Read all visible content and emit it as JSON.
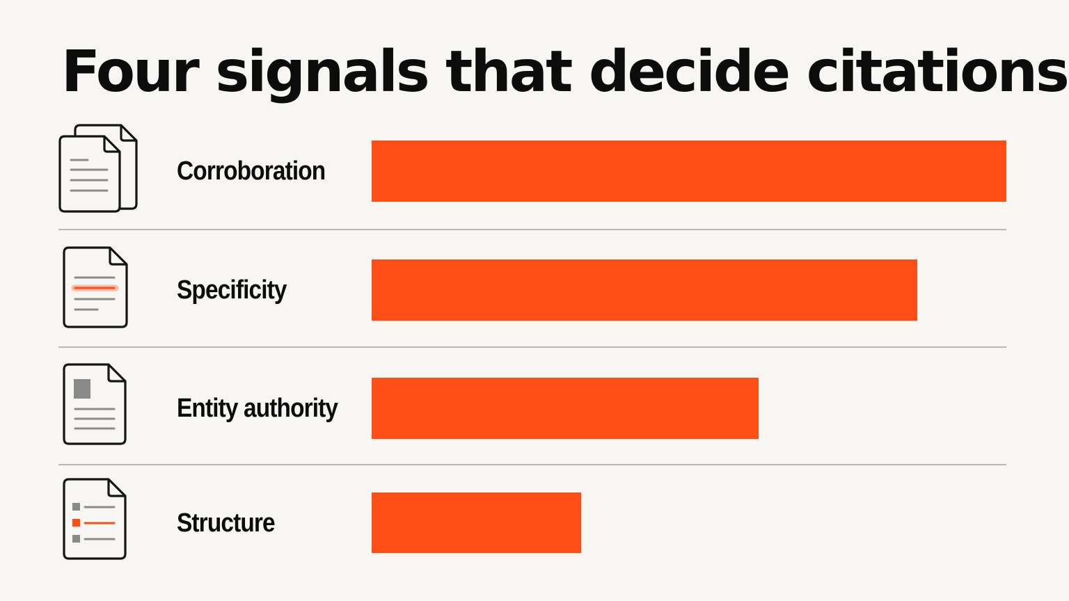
{
  "chart_data": {
    "type": "bar",
    "orientation": "horizontal",
    "title": "Four signals that decide citations",
    "categories": [
      "Corroboration",
      "Specificity",
      "Entity authority",
      "Structure"
    ],
    "values": [
      100,
      86,
      61,
      33
    ],
    "xlim": [
      0,
      100
    ],
    "xlabel": "",
    "ylabel": "",
    "grid": false,
    "legend": "none",
    "bar_color": "#fd4e18",
    "accent_color": "#fd4e18",
    "icons": [
      "stacked-documents-icon",
      "highlighted-document-icon",
      "profile-document-icon",
      "checklist-document-icon"
    ]
  }
}
